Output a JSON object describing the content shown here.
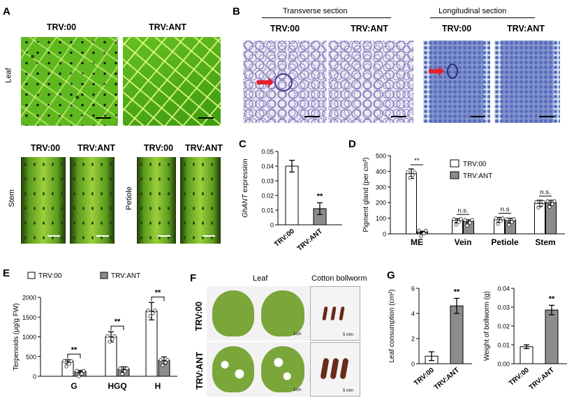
{
  "panelA": {
    "letter": "A",
    "col_labels": [
      "TRV:00",
      "TRV:ANT"
    ],
    "row_leaf": "Leaf",
    "stem_labels": [
      "TRV:00",
      "TRV:ANT"
    ],
    "row_stem": "Stem",
    "petiole_labels": [
      "TRV:00",
      "TRV:ANT"
    ],
    "row_petiole": "Petiole"
  },
  "panelB": {
    "letter": "B",
    "transverse": "Transverse section",
    "longitudinal": "Longitudinal section",
    "labels": [
      "TRV:00",
      "TRV:ANT",
      "TRV:00",
      "TRV:ANT"
    ]
  },
  "panelF": {
    "letter": "F",
    "leaf": "Leaf",
    "bollworm": "Cotton bollworm",
    "row1": "TRV:00",
    "row2": "TRV:ANT",
    "scale_leaf": "1cm",
    "scale_worm": "5 mm"
  },
  "colors": {
    "trv00": "#ffffff",
    "trvant": "#8c8c8c"
  },
  "chart_data": [
    {
      "id": "C",
      "letter": "C",
      "type": "bar",
      "categories": [
        "TRV:00",
        "TRV:ANT"
      ],
      "values": [
        0.04,
        0.011
      ],
      "errors": [
        0.004,
        0.004
      ],
      "ylabel_italic": "GhANT",
      "ylabel": " expression",
      "yticks": [
        "0",
        "0.01",
        "0.02",
        "0.03",
        "0.04",
        "0.05"
      ],
      "ylim": [
        0,
        0.05
      ],
      "sig": "**"
    },
    {
      "id": "D",
      "letter": "D",
      "type": "bar",
      "categories": [
        "ME",
        "Vein",
        "Petiole",
        "Stem"
      ],
      "series": [
        {
          "name": "TRV:00",
          "values": [
            385,
            85,
            90,
            195
          ],
          "errors": [
            30,
            12,
            15,
            20
          ]
        },
        {
          "name": "TRV:ANT",
          "values": [
            12,
            80,
            85,
            200
          ],
          "errors": [
            5,
            10,
            15,
            15
          ]
        }
      ],
      "ylabel": "Pigment gland (per cm²)",
      "yticks": [
        "0",
        "100",
        "200",
        "300",
        "400",
        "500"
      ],
      "ylim": [
        0,
        500
      ],
      "sig": [
        "**",
        "n.s.",
        "n.s",
        "n.s."
      ]
    },
    {
      "id": "E",
      "letter": "E",
      "type": "bar",
      "categories": [
        "G",
        "HGQ",
        "H"
      ],
      "series": [
        {
          "name": "TRV:00",
          "values": [
            370,
            1000,
            1650
          ],
          "errors": [
            50,
            130,
            220
          ]
        },
        {
          "name": "TRV:ANT",
          "values": [
            120,
            180,
            400
          ],
          "errors": [
            30,
            60,
            90
          ]
        }
      ],
      "ylabel": "Terpenoids (μg/g FW)",
      "yticks": [
        "0",
        "500",
        "1000",
        "1500",
        "2000"
      ],
      "ylim": [
        0,
        2000
      ],
      "sig": [
        "**",
        "**",
        "**"
      ]
    },
    {
      "id": "G1",
      "letter": "G",
      "type": "bar",
      "categories": [
        "TRV:00",
        "TRV:ANT"
      ],
      "values": [
        0.6,
        4.6
      ],
      "errors": [
        0.35,
        0.6
      ],
      "ylabel": "Leaf consumption (cm²)",
      "yticks": [
        "0",
        "2",
        "4",
        "6"
      ],
      "ylim": [
        0,
        6
      ],
      "sig": "**"
    },
    {
      "id": "G2",
      "type": "bar",
      "categories": [
        "TRV:00",
        "TRV:ANT"
      ],
      "values": [
        0.009,
        0.0285
      ],
      "errors": [
        0.001,
        0.0025
      ],
      "ylabel": "Weight of bollworm (g)",
      "yticks": [
        "0.00",
        "0.01",
        "0.02",
        "0.03",
        "0.04"
      ],
      "ylim": [
        0,
        0.04
      ],
      "sig": "**"
    }
  ]
}
